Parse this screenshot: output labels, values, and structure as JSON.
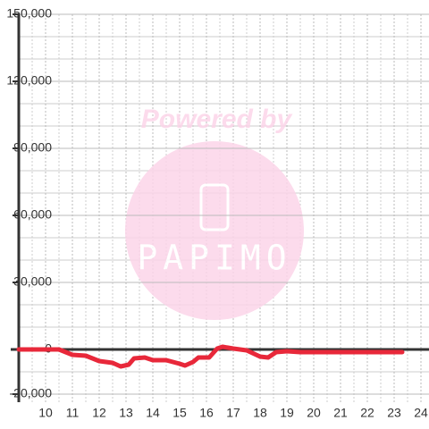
{
  "chart_data": {
    "type": "line",
    "watermark": {
      "line1": "Powered by",
      "line2": "PAPIMO"
    },
    "x": [
      9,
      10.5,
      11,
      11.5,
      12,
      12.5,
      12.8,
      13.1,
      13.3,
      13.7,
      14,
      14.5,
      15,
      15.2,
      15.5,
      15.7,
      16.1,
      16.4,
      16.6,
      17,
      17.5,
      18,
      18.3,
      18.6,
      19,
      19.5,
      20,
      21,
      22,
      23.3
    ],
    "series": [
      {
        "color": "#e8283a",
        "values": [
          0,
          0,
          -2400,
          -2800,
          -5200,
          -6000,
          -7600,
          -6800,
          -4000,
          -3600,
          -4800,
          -4800,
          -6400,
          -7200,
          -5600,
          -3600,
          -3600,
          400,
          1200,
          400,
          -400,
          -3200,
          -3600,
          -1200,
          -800,
          -1200,
          -1200,
          -1200,
          -1200,
          -1200
        ]
      }
    ],
    "xlim": [
      9,
      24.3
    ],
    "xticks": [
      10,
      11,
      12,
      13,
      14,
      15,
      16,
      17,
      18,
      19,
      20,
      21,
      22,
      23,
      24
    ],
    "minor_xticks": [
      9.5,
      10.5,
      11.5,
      12.5,
      13.5,
      14.5,
      15.5,
      16.5,
      17.5,
      18.5,
      19.5,
      20.5,
      21.5,
      22.5,
      23.5
    ],
    "ylim": [
      -20000,
      150000
    ],
    "yticks": [
      {
        "value": -20000,
        "label": "-20,000"
      },
      0,
      {
        "value": 30000,
        "label": "30,000"
      },
      {
        "value": 60000,
        "label": "60,000"
      },
      {
        "value": 90000,
        "label": "90,000"
      },
      {
        "value": 120000,
        "label": "120,000"
      },
      {
        "value": 150000,
        "label": "150,000"
      }
    ],
    "minor_yticks": [
      -10000,
      10000,
      20000,
      40000,
      50000,
      70000,
      80000,
      100000,
      110000,
      130000,
      140000
    ],
    "grid": true
  }
}
